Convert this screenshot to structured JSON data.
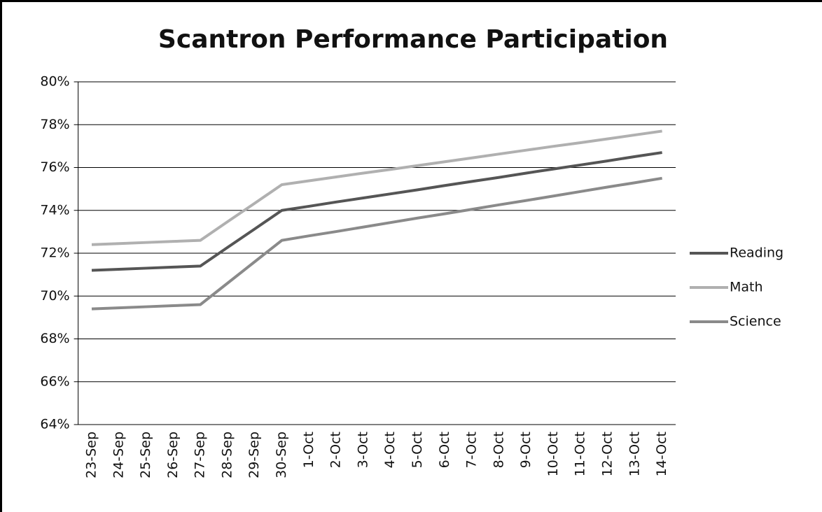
{
  "chart_data": {
    "type": "line",
    "title": "Scantron Performance Participation",
    "categories": [
      "23-Sep",
      "24-Sep",
      "25-Sep",
      "26-Sep",
      "27-Sep",
      "28-Sep",
      "29-Sep",
      "30-Sep",
      "1-Oct",
      "2-Oct",
      "3-Oct",
      "4-Oct",
      "5-Oct",
      "6-Oct",
      "7-Oct",
      "8-Oct",
      "9-Oct",
      "10-Oct",
      "11-Oct",
      "12-Oct",
      "13-Oct",
      "14-Oct"
    ],
    "series": [
      {
        "name": "Reading",
        "color": "#555555",
        "values": [
          71.2,
          71.25,
          71.3,
          71.35,
          71.4,
          72.27,
          73.13,
          74.0,
          74.19,
          74.39,
          74.58,
          74.77,
          74.96,
          75.16,
          75.35,
          75.54,
          75.74,
          75.93,
          76.12,
          76.31,
          76.51,
          76.7
        ]
      },
      {
        "name": "Math",
        "color": "#b0b0b0",
        "values": [
          72.4,
          72.45,
          72.5,
          72.55,
          72.6,
          73.47,
          74.33,
          75.2,
          75.38,
          75.56,
          75.74,
          75.91,
          76.09,
          76.27,
          76.45,
          76.63,
          76.81,
          76.99,
          77.16,
          77.34,
          77.52,
          77.7
        ]
      },
      {
        "name": "Science",
        "color": "#8a8a8a",
        "values": [
          69.4,
          69.45,
          69.5,
          69.55,
          69.6,
          70.6,
          71.6,
          72.6,
          72.81,
          73.01,
          73.22,
          73.43,
          73.64,
          73.84,
          74.05,
          74.26,
          74.46,
          74.67,
          74.88,
          75.09,
          75.29,
          75.5
        ]
      }
    ],
    "ylim": [
      64,
      80
    ],
    "yticks": [
      {
        "value": 64,
        "label": "64%"
      },
      {
        "value": 66,
        "label": "66%"
      },
      {
        "value": 68,
        "label": "68%"
      },
      {
        "value": 70,
        "label": "70%"
      },
      {
        "value": 72,
        "label": "72%"
      },
      {
        "value": 74,
        "label": "74%"
      },
      {
        "value": 76,
        "label": "76%"
      },
      {
        "value": 78,
        "label": "78%"
      },
      {
        "value": 80,
        "label": "80%"
      }
    ],
    "grid": true,
    "legend": "right"
  }
}
